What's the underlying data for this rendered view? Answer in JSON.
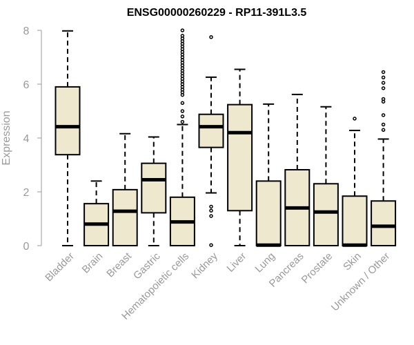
{
  "chart_data": {
    "type": "boxplot",
    "title": "ENSG00000260229 - RP11-391L3.5",
    "ylabel": "Expression",
    "xlabel": "",
    "ylim": [
      0,
      8
    ],
    "yticks": [
      0,
      2,
      4,
      6,
      8
    ],
    "box_fill": "#EEE8CF",
    "categories": [
      "Bladder",
      "Brain",
      "Breast",
      "Gastric",
      "Hematopoietic cells",
      "Kidney",
      "Liver",
      "Lung",
      "Pancreas",
      "Prostate",
      "Skin",
      "Unknown / Other"
    ],
    "series": [
      {
        "category": "Bladder",
        "min": 0,
        "q1": 3.38,
        "median": 4.42,
        "q3": 5.9,
        "max": 7.98,
        "outliers": []
      },
      {
        "category": "Brain",
        "min": 0,
        "q1": 0,
        "median": 0.8,
        "q3": 1.56,
        "max": 2.4,
        "outliers": []
      },
      {
        "category": "Breast",
        "min": 0,
        "q1": 0,
        "median": 1.28,
        "q3": 2.08,
        "max": 4.16,
        "outliers": []
      },
      {
        "category": "Gastric",
        "min": 0,
        "q1": 1.22,
        "median": 2.45,
        "q3": 3.06,
        "max": 4.04,
        "outliers": []
      },
      {
        "category": "Hematopoietic cells",
        "min": 0,
        "q1": 0,
        "median": 0.88,
        "q3": 1.8,
        "max": 4.5,
        "outliers": [
          4.6,
          4.8,
          5.0,
          5.3,
          5.6,
          5.7,
          5.8,
          5.9,
          6.0,
          6.1,
          6.2,
          6.3,
          6.4,
          6.5,
          6.6,
          6.7,
          6.8,
          6.9,
          7.0,
          7.1,
          7.2,
          7.3,
          7.4,
          7.5,
          7.6,
          7.7,
          7.8,
          8.0
        ]
      },
      {
        "category": "Kidney",
        "min": 1.96,
        "q1": 3.65,
        "median": 4.42,
        "q3": 4.88,
        "max": 6.26,
        "outliers": [
          0.02,
          1.1,
          1.3,
          1.45,
          7.75
        ]
      },
      {
        "category": "Liver",
        "min": 0,
        "q1": 1.3,
        "median": 4.2,
        "q3": 5.24,
        "max": 6.55,
        "outliers": []
      },
      {
        "category": "Lung",
        "min": 0,
        "q1": 0,
        "median": 0.02,
        "q3": 2.4,
        "max": 5.26,
        "outliers": []
      },
      {
        "category": "Pancreas",
        "min": 0,
        "q1": 0,
        "median": 1.4,
        "q3": 2.82,
        "max": 5.62,
        "outliers": []
      },
      {
        "category": "Prostate",
        "min": 0,
        "q1": 0,
        "median": 1.25,
        "q3": 2.3,
        "max": 5.16,
        "outliers": []
      },
      {
        "category": "Skin",
        "min": 0,
        "q1": 0,
        "median": 0.02,
        "q3": 1.84,
        "max": 4.28,
        "outliers": [
          4.72
        ]
      },
      {
        "category": "Unknown / Other",
        "min": 0,
        "q1": 0,
        "median": 0.72,
        "q3": 1.66,
        "max": 3.96,
        "outliers": [
          4.3,
          4.5,
          4.85,
          5.35,
          5.45,
          5.85,
          6.05,
          6.25,
          6.45
        ]
      }
    ]
  }
}
